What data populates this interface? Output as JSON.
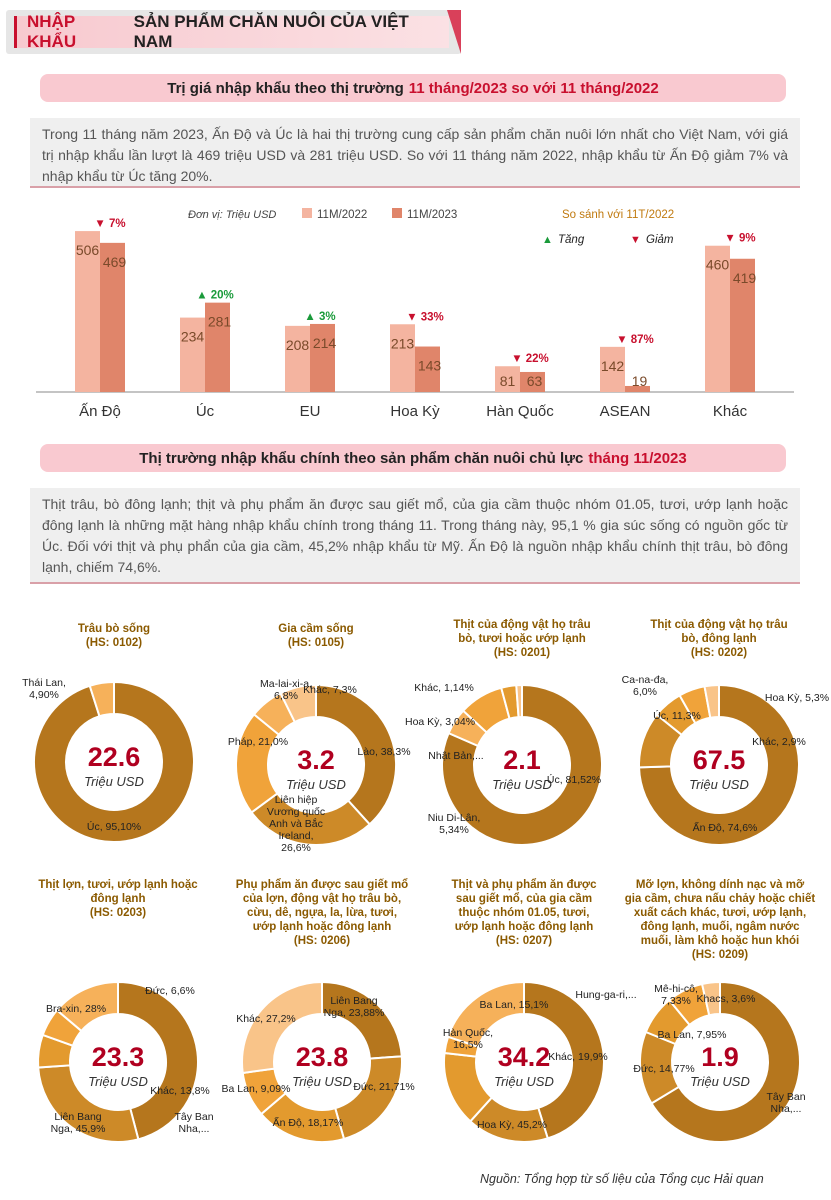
{
  "header": {
    "title_highlight": "NHẬP KHẨU",
    "title_rest": "SẢN PHẨM CHĂN NUÔI CỦA VIỆT NAM"
  },
  "section1": {
    "title": "Trị giá nhập khẩu theo thị trường",
    "title_highlight": "11 tháng/2023 so với 11 tháng/2022",
    "paragraph": "Trong 11 tháng năm 2023, Ấn Độ và Úc là hai thị trường cung cấp sản phẩm chăn nuôi lớn nhất cho Việt Nam, với giá trị nhập khẩu lần lượt là 469 triệu USD và 281 triệu USD. So với 11 tháng năm 2022, nhập khẩu từ Ấn Độ giảm 7% và nhập khẩu từ Úc tăng 20%."
  },
  "section2": {
    "title": "Thị trường nhập khẩu chính theo sản phẩm chăn nuôi chủ lực",
    "title_highlight": "tháng 11/2023",
    "paragraph": "Thịt trâu, bò đông lạnh; thịt và phụ phẩm ăn được sau giết mổ, của gia cầm thuộc nhóm 01.05, tươi, ướp lạnh hoặc đông lạnh là những mặt hàng nhập khẩu chính trong tháng 11. Trong tháng này, 95,1 % gia súc sống có nguồn gốc từ Úc. Đối với thịt và phụ phẩn của gia cầm, 45,2% nhập khẩu từ Mỹ. Ấn Độ là nguồn nhập khẩu chính thịt trâu, bò đông lạnh, chiếm 74,6%."
  },
  "source": "Nguồn: Tổng hợp từ số liệu của Tổng cục Hải quan",
  "colors": {
    "bar_2022": "#f4b4a0",
    "bar_2023": "#e0856a",
    "up": "#1a9a3a",
    "down": "#c8102e",
    "donut_palette": [
      "#b5761d",
      "#cd8a28",
      "#e39a2e",
      "#f0a33a",
      "#f6b15a",
      "#f9c489"
    ]
  },
  "chart_data": [
    {
      "type": "bar",
      "unit_label": "Đơn vị: Triệu USD",
      "categories": [
        "Ấn Độ",
        "Úc",
        "EU",
        "Hoa Kỳ",
        "Hàn Quốc",
        "ASEAN",
        "Khác"
      ],
      "series": [
        {
          "name": "11M/2022",
          "values": [
            506,
            234,
            208,
            213,
            81,
            142,
            460
          ]
        },
        {
          "name": "11M/2023",
          "values": [
            469,
            281,
            214,
            143,
            63,
            19,
            419
          ]
        }
      ],
      "changes": [
        {
          "dir": "down",
          "label": "7%"
        },
        {
          "dir": "up",
          "label": "20%"
        },
        {
          "dir": "up",
          "label": "3%"
        },
        {
          "dir": "down",
          "label": "33%"
        },
        {
          "dir": "down",
          "label": "22%"
        },
        {
          "dir": "down",
          "label": "87%"
        },
        {
          "dir": "down",
          "label": "9%"
        }
      ],
      "compare_title": "So sánh với 11T/2022",
      "up_label": "Tăng",
      "down_label": "Giảm",
      "ylim": [
        0,
        560
      ]
    },
    {
      "type": "pie",
      "title": "Trâu bò sống",
      "code": "(HS: 0102)",
      "total": "22.6",
      "unit": "Triệu USD",
      "slices": [
        {
          "label": "Úc, 95,10%",
          "value": 95.1
        },
        {
          "label": "Thái Lan, 4,90%",
          "value": 4.9
        }
      ]
    },
    {
      "type": "pie",
      "title": "Gia cầm sống",
      "code": "(HS: 0105)",
      "total": "3.2",
      "unit": "Triệu USD",
      "slices": [
        {
          "label": "Lào, 38,3%",
          "value": 38.3
        },
        {
          "label": "Liên hiệp Vương quốc Anh và Bắc Ireland, 26,6%",
          "value": 26.6
        },
        {
          "label": "Pháp, 21,0%",
          "value": 21.0
        },
        {
          "label": "Ma-lai-xi-a, 6,8%",
          "value": 6.8
        },
        {
          "label": "Khác, 7,3%",
          "value": 7.3
        }
      ]
    },
    {
      "type": "pie",
      "title": "Thịt của động vật họ trâu bò, tươi hoặc ướp lạnh",
      "code": "(HS: 0201)",
      "total": "2.1",
      "unit": "Triệu USD",
      "slices": [
        {
          "label": "Úc, 81,52%",
          "value": 81.52
        },
        {
          "label": "Niu Di-Lân, 5,34%",
          "value": 5.34
        },
        {
          "label": "Nhật Bản,...",
          "value": 8.96
        },
        {
          "label": "Hoa Kỳ, 3,04%",
          "value": 3.04
        },
        {
          "label": "Khác, 1,14%",
          "value": 1.14
        }
      ]
    },
    {
      "type": "pie",
      "title": "Thịt của động vật họ trâu bò, đông lạnh",
      "code": "(HS: 0202)",
      "total": "67.5",
      "unit": "Triệu USD",
      "slices": [
        {
          "label": "Ấn Độ, 74,6%",
          "value": 74.6
        },
        {
          "label": "Úc, 11,3%",
          "value": 11.3
        },
        {
          "label": "Ca-na-đa, 6,0%",
          "value": 6.0
        },
        {
          "label": "Hoa Kỳ, 5,3%",
          "value": 5.3
        },
        {
          "label": "Khác, 2,9%",
          "value": 2.9
        }
      ]
    },
    {
      "type": "pie",
      "title": "Thịt lợn, tươi, ướp lạnh hoặc đông lạnh",
      "code": "(HS: 0203)",
      "total": "23.3",
      "unit": "Triệu USD",
      "slices": [
        {
          "label": "Liên Bang Nga, 45,9%",
          "value": 45.9
        },
        {
          "label": "Bra-xin, 28%",
          "value": 28.0
        },
        {
          "label": "Đức, 6,6%",
          "value": 6.6
        },
        {
          "label": "Tây Ban Nha,...",
          "value": 5.7
        },
        {
          "label": "Khác, 13,8%",
          "value": 13.8
        }
      ]
    },
    {
      "type": "pie",
      "title": "Phụ phẩm ăn được sau giết mổ của lợn, động vật họ trâu bò, cừu, dê, ngựa, la, lừa, tươi, ướp lạnh hoặc đông lạnh",
      "code": "(HS: 0206)",
      "total": "23.8",
      "unit": "Triệu USD",
      "slices": [
        {
          "label": "Liên Bang Nga, 23,88%",
          "value": 23.88
        },
        {
          "label": "Đức, 21,71%",
          "value": 21.71
        },
        {
          "label": "Ấn Độ, 18,17%",
          "value": 18.17
        },
        {
          "label": "Ba Lan, 9,09%",
          "value": 9.09
        },
        {
          "label": "Khác, 27,2%",
          "value": 27.2
        }
      ]
    },
    {
      "type": "pie",
      "title": "Thịt và phụ phẩm ăn được sau giết mổ, của gia cầm thuộc nhóm 01.05, tươi, ướp lạnh hoặc đông lạnh",
      "code": "(HS: 0207)",
      "total": "34.2",
      "unit": "Triệu USD",
      "slices": [
        {
          "label": "Hoa Kỳ, 45,2%",
          "value": 45.2
        },
        {
          "label": "Hàn Quốc, 16,5%",
          "value": 16.5
        },
        {
          "label": "Ba Lan, 15,1%",
          "value": 15.1
        },
        {
          "label": "Hung-ga-ri,...",
          "value": 3.3
        },
        {
          "label": "Khác, 19,9%",
          "value": 19.9
        }
      ]
    },
    {
      "type": "pie",
      "title": "Mỡ lợn, không dính nạc và mỡ gia cầm, chưa nấu chảy hoặc chiết xuất cách khác, tươi, ướp lạnh, đông lạnh, muối, ngâm nước muối, làm khô hoặc hun khói",
      "code": "(HS: 0209)",
      "total": "1.9",
      "unit": "Triệu USD",
      "slices": [
        {
          "label": "Tây Ban Nha,...",
          "value": 66.35
        },
        {
          "label": "Đức, 14,77%",
          "value": 14.77
        },
        {
          "label": "Ba Lan, 7,95%",
          "value": 7.95
        },
        {
          "label": "Mê-hi-cô, 7,33%",
          "value": 7.33
        },
        {
          "label": "Khacs, 3,6%",
          "value": 3.6
        }
      ]
    }
  ]
}
